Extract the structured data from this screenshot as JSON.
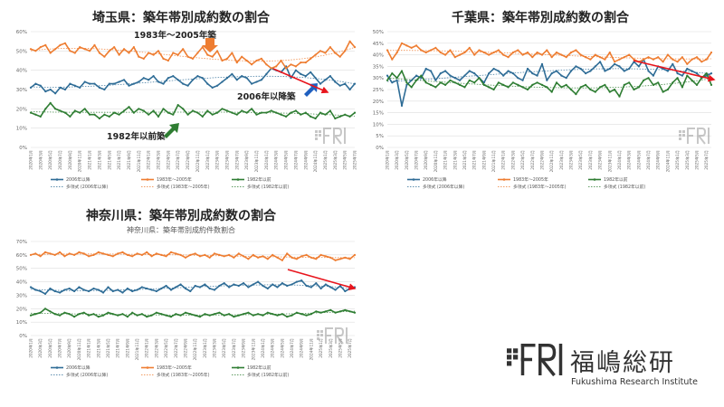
{
  "logo": {
    "mark": "FRI",
    "name_ja": "福嶋総研",
    "name_en": "Fukushima Research Institute"
  },
  "colors": {
    "post2006": "#2e6c96",
    "mid": "#ee7d31",
    "pre1982": "#2e7d32",
    "trend_arrow": "#e8141c",
    "annotation_arrow_orange": "#ee7d31",
    "annotation_arrow_blue": "#1f5fbf",
    "annotation_arrow_green": "#2e7d32"
  },
  "legend_labels": {
    "s1": "2006年以降",
    "s2": "1983年～2005年",
    "s3": "1982年以前",
    "t1": "多項式 (2006年以降)",
    "t2": "多項式 (1983年～2005年)",
    "t3": "多項式 (1982年以前)"
  },
  "chart_data": [
    {
      "type": "line",
      "title": "埼玉県：築年帯別成約数の割合",
      "subtitle": "",
      "ylim": [
        0,
        60
      ],
      "yticks": [
        "0%",
        "10%",
        "20%",
        "30%",
        "40%",
        "50%",
        "60%"
      ],
      "x_start": "2020-01",
      "n_points": 67,
      "annotations": [
        {
          "text": "1983年～2005年築",
          "color": "#ee7d31"
        },
        {
          "text": "2006年以降築",
          "color": "#1f5fbf"
        },
        {
          "text": "1982年以前築",
          "color": "#2e7d32"
        }
      ],
      "series": [
        {
          "name": "2006年以降",
          "values": [
            31,
            33,
            32,
            29,
            30,
            28,
            31,
            30,
            33,
            32,
            31,
            34,
            33,
            33,
            31,
            30,
            33,
            33,
            34,
            35,
            32,
            33,
            34,
            36,
            35,
            37,
            34,
            33,
            36,
            37,
            35,
            33,
            32,
            35,
            37,
            36,
            33,
            31,
            32,
            34,
            36,
            38,
            35,
            37,
            36,
            33,
            34,
            35,
            38,
            41,
            40,
            39,
            42,
            36,
            40,
            38,
            37,
            39,
            36,
            33,
            35,
            37,
            34,
            32,
            33,
            30,
            33
          ]
        },
        {
          "name": "1983年～2005年",
          "values": [
            51,
            50,
            52,
            53,
            49,
            51,
            53,
            54,
            50,
            49,
            52,
            51,
            50,
            53,
            49,
            47,
            50,
            52,
            48,
            51,
            49,
            52,
            47,
            46,
            49,
            48,
            50,
            46,
            45,
            49,
            48,
            51,
            47,
            46,
            49,
            52,
            48,
            47,
            50,
            45,
            46,
            49,
            44,
            47,
            45,
            43,
            45,
            46,
            43,
            41,
            42,
            45,
            41,
            43,
            42,
            44,
            44,
            46,
            48,
            50,
            49,
            52,
            49,
            47,
            50,
            55,
            52
          ]
        },
        {
          "name": "1982年以前",
          "values": [
            18,
            17,
            16,
            20,
            23,
            20,
            19,
            18,
            16,
            19,
            18,
            20,
            17,
            17,
            15,
            17,
            16,
            18,
            17,
            19,
            21,
            18,
            20,
            19,
            17,
            19,
            16,
            20,
            18,
            17,
            22,
            20,
            17,
            19,
            18,
            16,
            19,
            17,
            18,
            20,
            19,
            18,
            17,
            19,
            18,
            20,
            17,
            18,
            18,
            19,
            18,
            17,
            16,
            18,
            19,
            17,
            18,
            16,
            15,
            18,
            17,
            19,
            15,
            16,
            17,
            16,
            18
          ]
        }
      ]
    },
    {
      "type": "line",
      "title": "千葉県：築年帯別成約数の割合",
      "subtitle": "",
      "ylim": [
        0,
        50
      ],
      "yticks": [
        "0%",
        "5%",
        "10%",
        "15%",
        "20%",
        "25%",
        "30%",
        "35%",
        "40%",
        "45%",
        "50%"
      ],
      "x_start": "2020-01",
      "n_points": 68,
      "series": [
        {
          "name": "2006年以降",
          "values": [
            31,
            28,
            29,
            18,
            27,
            29,
            31,
            30,
            34,
            33,
            29,
            32,
            33,
            31,
            30,
            29,
            31,
            33,
            32,
            30,
            28,
            32,
            34,
            33,
            31,
            33,
            32,
            30,
            29,
            34,
            32,
            31,
            36,
            29,
            32,
            33,
            31,
            30,
            33,
            35,
            34,
            32,
            33,
            35,
            37,
            33,
            34,
            36,
            35,
            33,
            34,
            37,
            35,
            38,
            33,
            31,
            35,
            34,
            33,
            36,
            32,
            31,
            34,
            33,
            32,
            30,
            31,
            32
          ]
        },
        {
          "name": "1983年～2005年",
          "values": [
            42,
            38,
            41,
            45,
            44,
            43,
            44,
            42,
            41,
            42,
            43,
            41,
            40,
            42,
            39,
            40,
            41,
            43,
            40,
            42,
            41,
            40,
            41,
            42,
            40,
            39,
            41,
            42,
            40,
            41,
            39,
            41,
            40,
            42,
            39,
            41,
            40,
            39,
            41,
            42,
            40,
            39,
            38,
            40,
            39,
            38,
            41,
            37,
            38,
            39,
            40,
            38,
            37,
            38,
            39,
            38,
            39,
            37,
            40,
            38,
            37,
            39,
            36,
            38,
            39,
            37,
            38,
            41
          ]
        },
        {
          "name": "1982年以前",
          "values": [
            29,
            32,
            30,
            33,
            28,
            26,
            29,
            31,
            28,
            27,
            26,
            28,
            27,
            29,
            28,
            27,
            26,
            29,
            28,
            30,
            27,
            26,
            25,
            28,
            27,
            26,
            28,
            27,
            26,
            25,
            27,
            28,
            27,
            26,
            24,
            28,
            26,
            27,
            25,
            23,
            26,
            27,
            25,
            24,
            26,
            27,
            24,
            25,
            22,
            27,
            28,
            25,
            26,
            29,
            30,
            27,
            28,
            24,
            25,
            28,
            30,
            26,
            31,
            29,
            27,
            30,
            32,
            27
          ]
        }
      ]
    },
    {
      "type": "line",
      "title": "神奈川県：築年帯別成約数の割合",
      "subtitle": "神奈川県：築年帯別成約件数割合",
      "ylim": [
        0,
        70
      ],
      "yticks": [
        "0%",
        "10%",
        "20%",
        "30%",
        "40%",
        "50%",
        "60%",
        "70%"
      ],
      "x_start": "2020-01",
      "n_points": 68,
      "series": [
        {
          "name": "2006年以降",
          "values": [
            36,
            34,
            33,
            31,
            35,
            33,
            32,
            34,
            35,
            33,
            36,
            34,
            33,
            35,
            34,
            32,
            36,
            33,
            34,
            32,
            35,
            33,
            34,
            36,
            35,
            34,
            33,
            35,
            37,
            34,
            36,
            38,
            35,
            33,
            37,
            36,
            38,
            35,
            34,
            37,
            39,
            36,
            38,
            37,
            39,
            36,
            38,
            40,
            37,
            35,
            38,
            36,
            39,
            37,
            38,
            40,
            41,
            37,
            36,
            39,
            35,
            38,
            36,
            34,
            37,
            33,
            35,
            36
          ]
        },
        {
          "name": "1983年～2005年",
          "values": [
            60,
            61,
            59,
            62,
            61,
            60,
            62,
            59,
            61,
            60,
            62,
            61,
            59,
            60,
            62,
            61,
            60,
            59,
            61,
            62,
            60,
            59,
            61,
            60,
            62,
            59,
            61,
            60,
            59,
            62,
            61,
            60,
            58,
            60,
            61,
            59,
            60,
            58,
            61,
            60,
            59,
            60,
            58,
            61,
            59,
            57,
            60,
            58,
            59,
            57,
            60,
            58,
            56,
            61,
            58,
            57,
            59,
            60,
            58,
            57,
            60,
            59,
            58,
            56,
            57,
            58,
            57,
            60
          ]
        },
        {
          "name": "1982年以前",
          "values": [
            15,
            16,
            17,
            20,
            18,
            16,
            15,
            17,
            16,
            14,
            16,
            17,
            15,
            16,
            14,
            15,
            17,
            16,
            15,
            16,
            14,
            17,
            15,
            16,
            14,
            15,
            17,
            16,
            15,
            14,
            16,
            15,
            17,
            16,
            15,
            14,
            16,
            15,
            16,
            17,
            15,
            16,
            14,
            15,
            16,
            17,
            15,
            16,
            15,
            17,
            16,
            15,
            16,
            14,
            15,
            17,
            16,
            15,
            16,
            18,
            17,
            18,
            19,
            17,
            18,
            19,
            18,
            17
          ]
        }
      ]
    }
  ]
}
